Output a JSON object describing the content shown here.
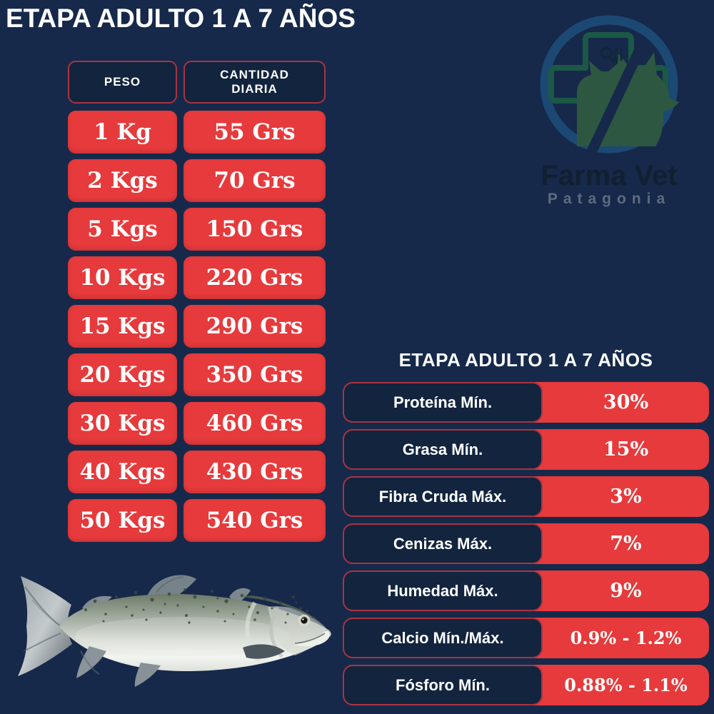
{
  "colors": {
    "background": "#16294a",
    "cell_navy": "#12243e",
    "accent_red": "#e63a3c",
    "border_red": "#a93440",
    "text_white": "#ffffff",
    "logo_ring_blue": "#1d4b76",
    "logo_cross_green": "#1c5a46"
  },
  "title": "ETAPA ADULTO 1 A 7 AÑOS",
  "feeding_table": {
    "headers": {
      "weight": "PESO",
      "daily": "CANTIDAD DIARIA"
    },
    "rows": [
      {
        "weight": "1 Kg",
        "amount": "55 Grs"
      },
      {
        "weight": "2 Kgs",
        "amount": "70 Grs"
      },
      {
        "weight": "5 Kgs",
        "amount": "150 Grs"
      },
      {
        "weight": "10 Kgs",
        "amount": "220 Grs"
      },
      {
        "weight": "15 Kgs",
        "amount": "290 Grs"
      },
      {
        "weight": "20 Kgs",
        "amount": "350 Grs"
      },
      {
        "weight": "30 Kgs",
        "amount": "460 Grs"
      },
      {
        "weight": "40 Kgs",
        "amount": "430 Grs"
      },
      {
        "weight": "50 Kgs",
        "amount": "540 Grs"
      }
    ]
  },
  "nutrition_table": {
    "title": "ETAPA ADULTO 1 A 7 AÑOS",
    "rows": [
      {
        "label": "Proteína Mín.",
        "value": "30%"
      },
      {
        "label": "Grasa Mín.",
        "value": "15%"
      },
      {
        "label": "Fibra Cruda Máx.",
        "value": "3%"
      },
      {
        "label": "Cenizas Máx.",
        "value": "7%"
      },
      {
        "label": "Humedad Máx.",
        "value": "9%"
      },
      {
        "label": "Calcio Mín./Máx.",
        "value": "0.9% - 1.2%"
      },
      {
        "label": "Fósforo Mín.",
        "value": "0.88% - 1.1%"
      }
    ]
  },
  "logo": {
    "brand": "Farma Vet",
    "subtitle": "Patagonia"
  },
  "illustration": {
    "name": "salmon-fish"
  },
  "chart_data": [
    {
      "type": "table",
      "title": "ETAPA ADULTO 1 A 7 AÑOS",
      "columns": [
        "PESO",
        "CANTIDAD DIARIA"
      ],
      "rows": [
        [
          "1 Kg",
          "55 Grs"
        ],
        [
          "2 Kgs",
          "70 Grs"
        ],
        [
          "5 Kgs",
          "150 Grs"
        ],
        [
          "10 Kgs",
          "220 Grs"
        ],
        [
          "15 Kgs",
          "290 Grs"
        ],
        [
          "20 Kgs",
          "350 Grs"
        ],
        [
          "30 Kgs",
          "460 Grs"
        ],
        [
          "40 Kgs",
          "430 Grs"
        ],
        [
          "50 Kgs",
          "540 Grs"
        ]
      ]
    },
    {
      "type": "table",
      "title": "ETAPA ADULTO 1 A 7 AÑOS",
      "rows": [
        [
          "Proteína Mín.",
          "30%"
        ],
        [
          "Grasa Mín.",
          "15%"
        ],
        [
          "Fibra Cruda Máx.",
          "3%"
        ],
        [
          "Cenizas Máx.",
          "7%"
        ],
        [
          "Humedad Máx.",
          "9%"
        ],
        [
          "Calcio Mín./Máx.",
          "0.9% - 1.2%"
        ],
        [
          "Fósforo Mín.",
          "0.88% - 1.1%"
        ]
      ]
    }
  ]
}
